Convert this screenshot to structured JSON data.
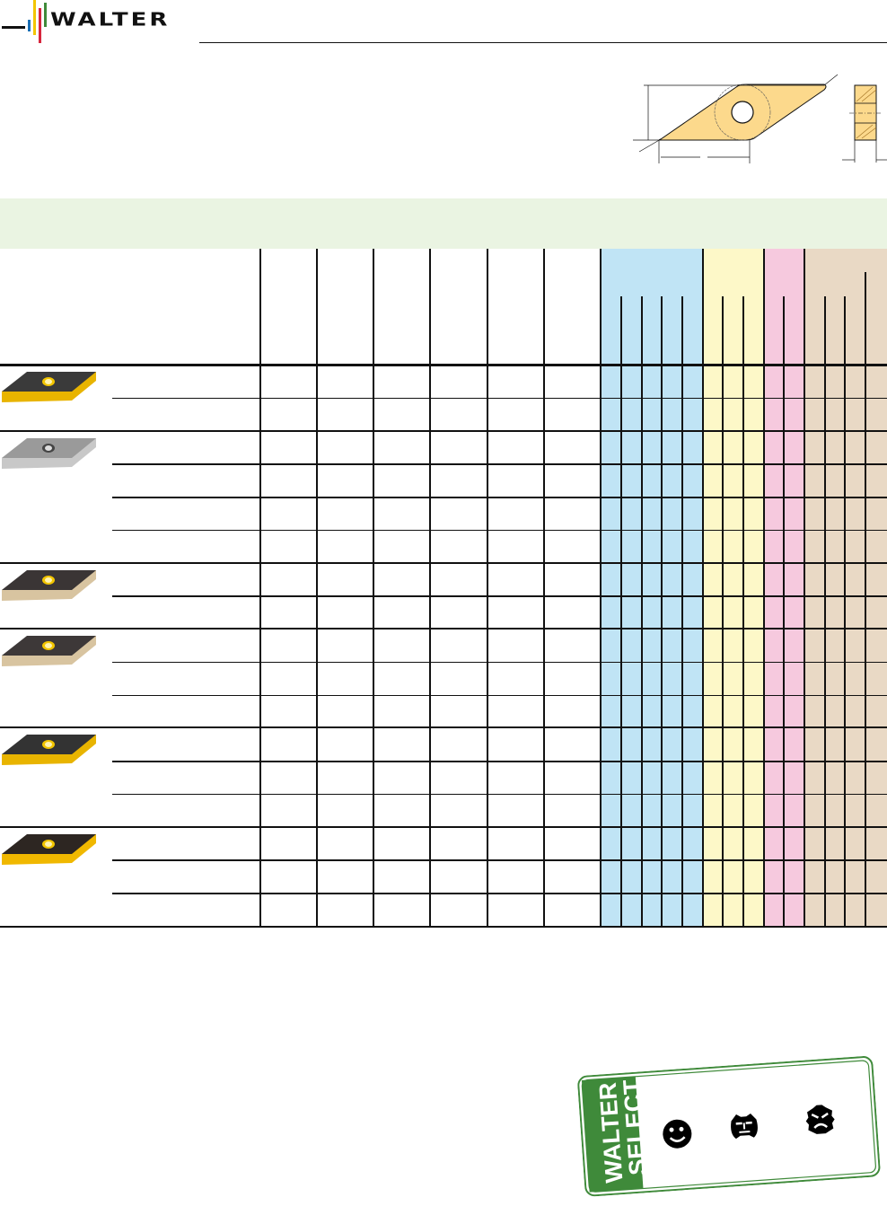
{
  "brand": {
    "logo_text": "WALTER",
    "logo_bar_colors": [
      "#1a6fb5",
      "#f2c500",
      "#d7263d",
      "#3f8a3a"
    ]
  },
  "colors": {
    "header_band": "#eaf4e2",
    "blue_zone": "#c0e4f5",
    "yellow_zone": "#fdf8c8",
    "pink_zone": "#f6c9de",
    "tan_zone": "#e9d9c5",
    "insert_drawing": "#fcd98c",
    "stamp_green": "#3f8a3a"
  },
  "inserts": [
    {
      "icon": "insert-black-gold-icon",
      "top": "#3a3a3a",
      "edge": "#e8b400"
    },
    {
      "icon": "insert-silver-icon",
      "top": "#9a9a9a",
      "edge": "#c8c8c8"
    },
    {
      "icon": "insert-black-bronze-icon",
      "top": "#3a3535",
      "edge": "#d8c4a0"
    },
    {
      "icon": "insert-black-bronze-icon",
      "top": "#3d3838",
      "edge": "#d8c4a0"
    },
    {
      "icon": "insert-black-gold-icon",
      "top": "#333",
      "edge": "#e8b400"
    },
    {
      "icon": "insert-black-gold-icon",
      "top": "#2d2622",
      "edge": "#f0b800"
    }
  ],
  "stamp": {
    "line1": "WALTER",
    "line2": "SELECT",
    "icons": [
      "smiley-good-icon",
      "face-neutral-icon",
      "face-angry-icon"
    ]
  }
}
